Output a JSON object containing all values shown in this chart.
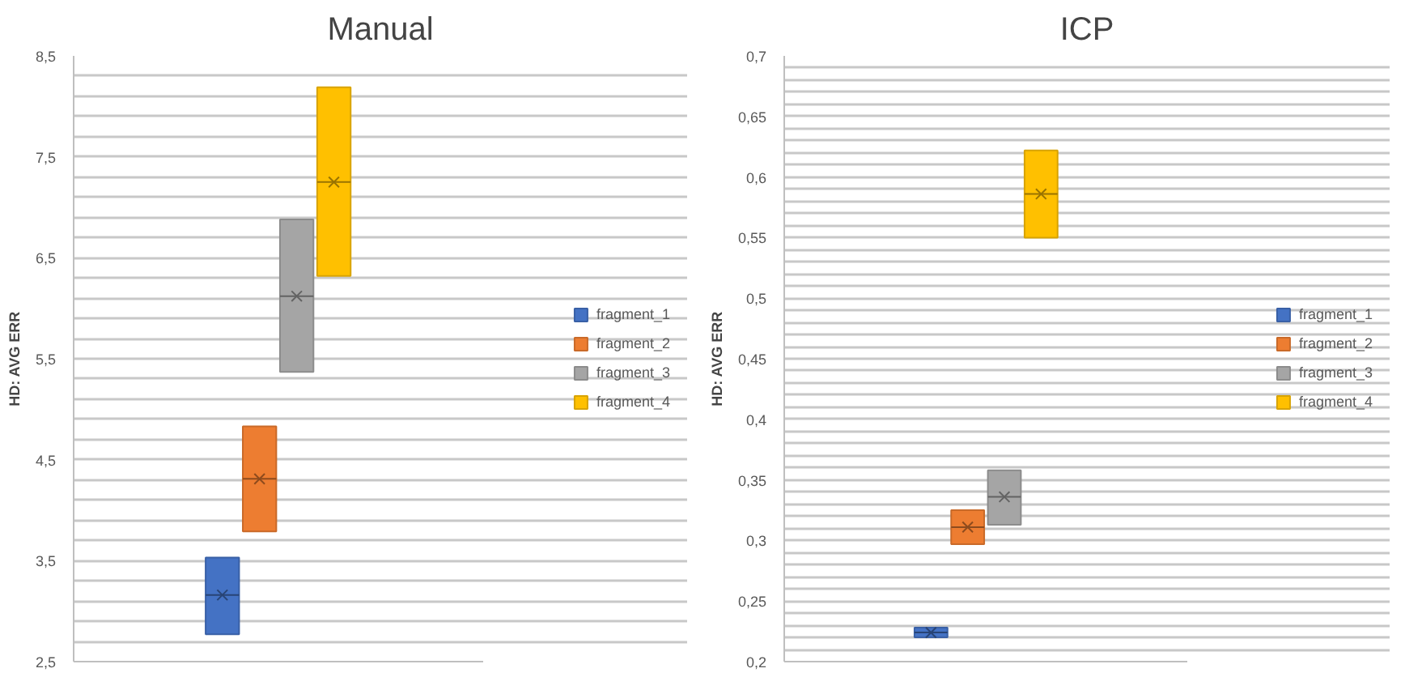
{
  "chart_data": [
    {
      "type": "box",
      "title": "Manual",
      "ylabel": "HD: AVG ERR",
      "categories": [
        null
      ],
      "ylim": [
        2.5,
        8.5
      ],
      "yticks": [
        {
          "value": 2.5,
          "label": "2,5"
        },
        {
          "value": 2.7,
          "label": null
        },
        {
          "value": 2.9,
          "label": null
        },
        {
          "value": 3.1,
          "label": null
        },
        {
          "value": 3.3,
          "label": null
        },
        {
          "value": 3.5,
          "label": "3,5"
        },
        {
          "value": 3.7,
          "label": null
        },
        {
          "value": 3.9,
          "label": null
        },
        {
          "value": 4.1,
          "label": null
        },
        {
          "value": 4.3,
          "label": null
        },
        {
          "value": 4.5,
          "label": "4,5"
        },
        {
          "value": 4.7,
          "label": null
        },
        {
          "value": 4.9,
          "label": null
        },
        {
          "value": 5.1,
          "label": null
        },
        {
          "value": 5.3,
          "label": null
        },
        {
          "value": 5.5,
          "label": "5,5"
        },
        {
          "value": 5.7,
          "label": null
        },
        {
          "value": 5.9,
          "label": null
        },
        {
          "value": 6.1,
          "label": null
        },
        {
          "value": 6.3,
          "label": null
        },
        {
          "value": 6.5,
          "label": "6,5"
        },
        {
          "value": 6.7,
          "label": null
        },
        {
          "value": 6.9,
          "label": null
        },
        {
          "value": 7.1,
          "label": null
        },
        {
          "value": 7.3,
          "label": null
        },
        {
          "value": 7.5,
          "label": "7,5"
        },
        {
          "value": 7.7,
          "label": null
        },
        {
          "value": 7.9,
          "label": null
        },
        {
          "value": 8.1,
          "label": null
        },
        {
          "value": 8.3,
          "label": null
        },
        {
          "value": 8.5,
          "label": "8,5"
        }
      ],
      "grid": "y",
      "legend": "right",
      "marker": "cross",
      "tick_labels": "y",
      "series": [
        {
          "name": "fragment_1",
          "color": "#4472c4",
          "boxes": [
            {
              "low": 2.77,
              "q1": 2.77,
              "median": 3.16,
              "q3": 3.53,
              "high": 3.53,
              "mean": 3.16
            }
          ]
        },
        {
          "name": "fragment_2",
          "color": "#ed7d31",
          "boxes": [
            {
              "low": 3.79,
              "q1": 3.79,
              "median": 4.31,
              "q3": 4.83,
              "high": 4.83,
              "mean": 4.31
            }
          ]
        },
        {
          "name": "fragment_3",
          "color": "#a5a5a5",
          "boxes": [
            {
              "low": 5.37,
              "q1": 5.37,
              "median": 6.12,
              "q3": 6.88,
              "high": 6.88,
              "mean": 6.12
            }
          ]
        },
        {
          "name": "fragment_4",
          "color": "#ffc000",
          "boxes": [
            {
              "low": 6.32,
              "q1": 6.32,
              "median": 7.25,
              "q3": 8.19,
              "high": 8.19,
              "mean": 7.25
            }
          ]
        }
      ]
    },
    {
      "type": "box",
      "title": "ICP",
      "ylabel": "HD: AVG ERR",
      "categories": [
        null
      ],
      "ylim": [
        0.2,
        0.7
      ],
      "yticks": [
        {
          "value": 0.2,
          "label": "0,2"
        },
        {
          "value": 0.21,
          "label": null
        },
        {
          "value": 0.22,
          "label": null
        },
        {
          "value": 0.23,
          "label": null
        },
        {
          "value": 0.24,
          "label": null
        },
        {
          "value": 0.25,
          "label": "0,25"
        },
        {
          "value": 0.26,
          "label": null
        },
        {
          "value": 0.27,
          "label": null
        },
        {
          "value": 0.28,
          "label": null
        },
        {
          "value": 0.29,
          "label": null
        },
        {
          "value": 0.3,
          "label": "0,3"
        },
        {
          "value": 0.31,
          "label": null
        },
        {
          "value": 0.32,
          "label": null
        },
        {
          "value": 0.33,
          "label": null
        },
        {
          "value": 0.34,
          "label": null
        },
        {
          "value": 0.35,
          "label": "0,35"
        },
        {
          "value": 0.36,
          "label": null
        },
        {
          "value": 0.37,
          "label": null
        },
        {
          "value": 0.38,
          "label": null
        },
        {
          "value": 0.39,
          "label": null
        },
        {
          "value": 0.4,
          "label": "0,4"
        },
        {
          "value": 0.41,
          "label": null
        },
        {
          "value": 0.42,
          "label": null
        },
        {
          "value": 0.43,
          "label": null
        },
        {
          "value": 0.44,
          "label": null
        },
        {
          "value": 0.45,
          "label": "0,45"
        },
        {
          "value": 0.46,
          "label": null
        },
        {
          "value": 0.47,
          "label": null
        },
        {
          "value": 0.48,
          "label": null
        },
        {
          "value": 0.49,
          "label": null
        },
        {
          "value": 0.5,
          "label": "0,5"
        },
        {
          "value": 0.51,
          "label": null
        },
        {
          "value": 0.52,
          "label": null
        },
        {
          "value": 0.53,
          "label": null
        },
        {
          "value": 0.54,
          "label": null
        },
        {
          "value": 0.55,
          "label": "0,55"
        },
        {
          "value": 0.56,
          "label": null
        },
        {
          "value": 0.57,
          "label": null
        },
        {
          "value": 0.58,
          "label": null
        },
        {
          "value": 0.59,
          "label": null
        },
        {
          "value": 0.6,
          "label": "0,6"
        },
        {
          "value": 0.61,
          "label": null
        },
        {
          "value": 0.62,
          "label": null
        },
        {
          "value": 0.63,
          "label": null
        },
        {
          "value": 0.64,
          "label": null
        },
        {
          "value": 0.65,
          "label": "0,65"
        },
        {
          "value": 0.66,
          "label": null
        },
        {
          "value": 0.67,
          "label": null
        },
        {
          "value": 0.68,
          "label": null
        },
        {
          "value": 0.69,
          "label": null
        },
        {
          "value": 0.7,
          "label": "0,7"
        }
      ],
      "grid": "y",
      "legend": "right",
      "marker": "cross",
      "tick_labels": "y",
      "series": [
        {
          "name": "fragment_1",
          "color": "#4472c4",
          "boxes": [
            {
              "low": 0.22,
              "q1": 0.22,
              "median": 0.224,
              "q3": 0.228,
              "high": 0.228,
              "mean": 0.224
            }
          ]
        },
        {
          "name": "fragment_2",
          "color": "#ed7d31",
          "boxes": [
            {
              "low": 0.297,
              "q1": 0.297,
              "median": 0.311,
              "q3": 0.325,
              "high": 0.325,
              "mean": 0.311
            }
          ]
        },
        {
          "name": "fragment_3",
          "color": "#a5a5a5",
          "boxes": [
            {
              "low": 0.313,
              "q1": 0.313,
              "median": 0.336,
              "q3": 0.358,
              "high": 0.358,
              "mean": 0.336
            }
          ]
        },
        {
          "name": "fragment_4",
          "color": "#ffc000",
          "boxes": [
            {
              "low": 0.55,
              "q1": 0.55,
              "median": 0.586,
              "q3": 0.622,
              "high": 0.622,
              "mean": 0.586
            }
          ]
        }
      ]
    }
  ]
}
